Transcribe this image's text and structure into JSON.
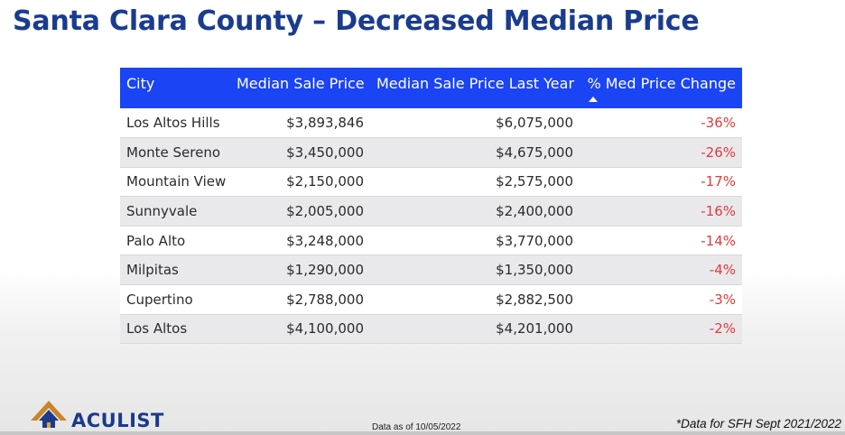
{
  "title": "Santa Clara County – Decreased Median Price",
  "table": {
    "headers": [
      "City",
      "Median Sale Price",
      "Median Sale Price Last Year",
      "% Med Price Change"
    ],
    "sorted_column": "% Med Price Change",
    "rows": [
      [
        "Los Altos Hills",
        "$3,893,846",
        "$6,075,000",
        "-36%"
      ],
      [
        "Monte Sereno",
        "$3,450,000",
        "$4,675,000",
        "-26%"
      ],
      [
        "Mountain View",
        "$2,150,000",
        "$2,575,000",
        "-17%"
      ],
      [
        "Sunnyvale",
        "$2,005,000",
        "$2,400,000",
        "-16%"
      ],
      [
        "Palo Alto",
        "$3,248,000",
        "$3,770,000",
        "-14%"
      ],
      [
        "Milpitas",
        "$1,290,000",
        "$1,350,000",
        "-4%"
      ],
      [
        "Cupertino",
        "$2,788,000",
        "$2,882,500",
        "-3%"
      ],
      [
        "Los Altos",
        "$4,100,000",
        "$4,201,000",
        "-2%"
      ]
    ]
  },
  "footer": {
    "logo_text": "ACULIST",
    "date_note": "Data as of 10/05/2022",
    "footnote": "*Data for SFH Sept 2021/2022"
  },
  "colors": {
    "header_bg": "#1b44f5",
    "title": "#1a3c8e",
    "negative": "#e23a3a"
  },
  "icons": {
    "logo": "aculist-house-logo-icon",
    "sort": "sort-ascending-arrow-icon"
  }
}
